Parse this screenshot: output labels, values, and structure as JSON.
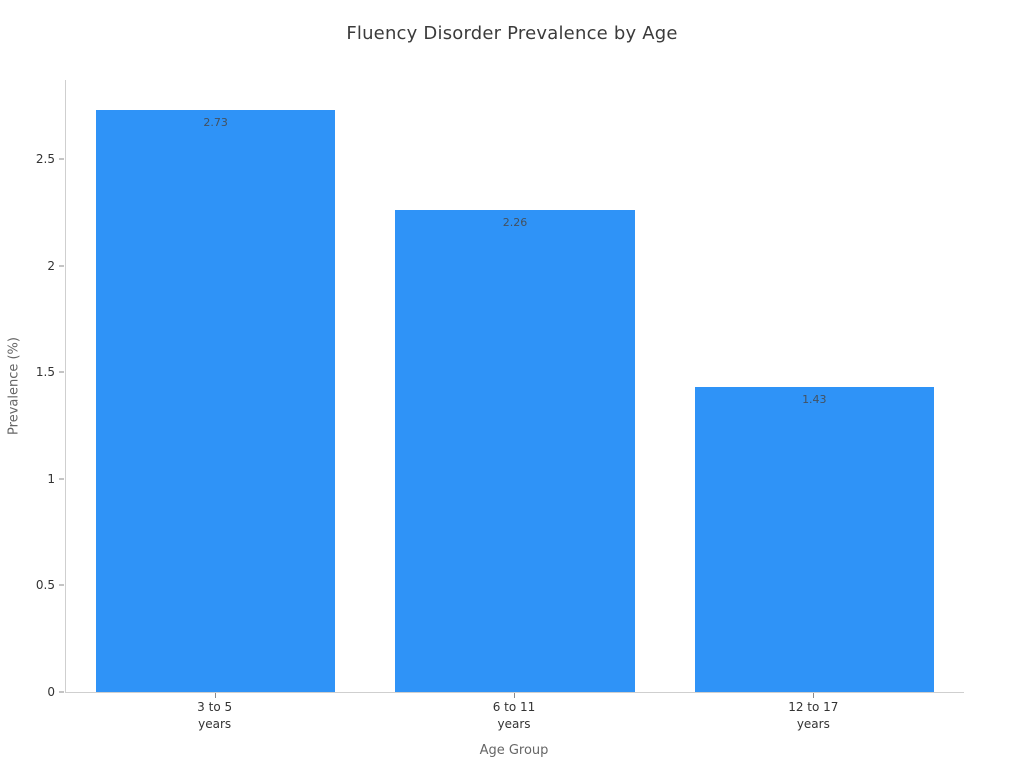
{
  "chart_data": {
    "type": "bar",
    "title": "Fluency Disorder Prevalence by Age",
    "categories": [
      "3 to 5\nyears",
      "6 to 11\nyears",
      "12 to 17\nyears"
    ],
    "values": [
      2.73,
      2.26,
      1.43
    ],
    "value_labels": [
      "2.73",
      "2.26",
      "1.43"
    ],
    "xlabel": "Age Group",
    "ylabel": "Prevalence (%)",
    "ylim": [
      0,
      2.87
    ],
    "ytick_values": [
      0,
      0.5,
      1,
      1.5,
      2,
      2.5
    ],
    "ytick_labels": [
      "0",
      "0.5",
      "1",
      "1.5",
      "2",
      "2.5"
    ],
    "bar_color": "#2f93f7",
    "value_label_color": "#44515f",
    "axis_line_color": "#cfcfcf",
    "grid": false,
    "legend": "none"
  }
}
